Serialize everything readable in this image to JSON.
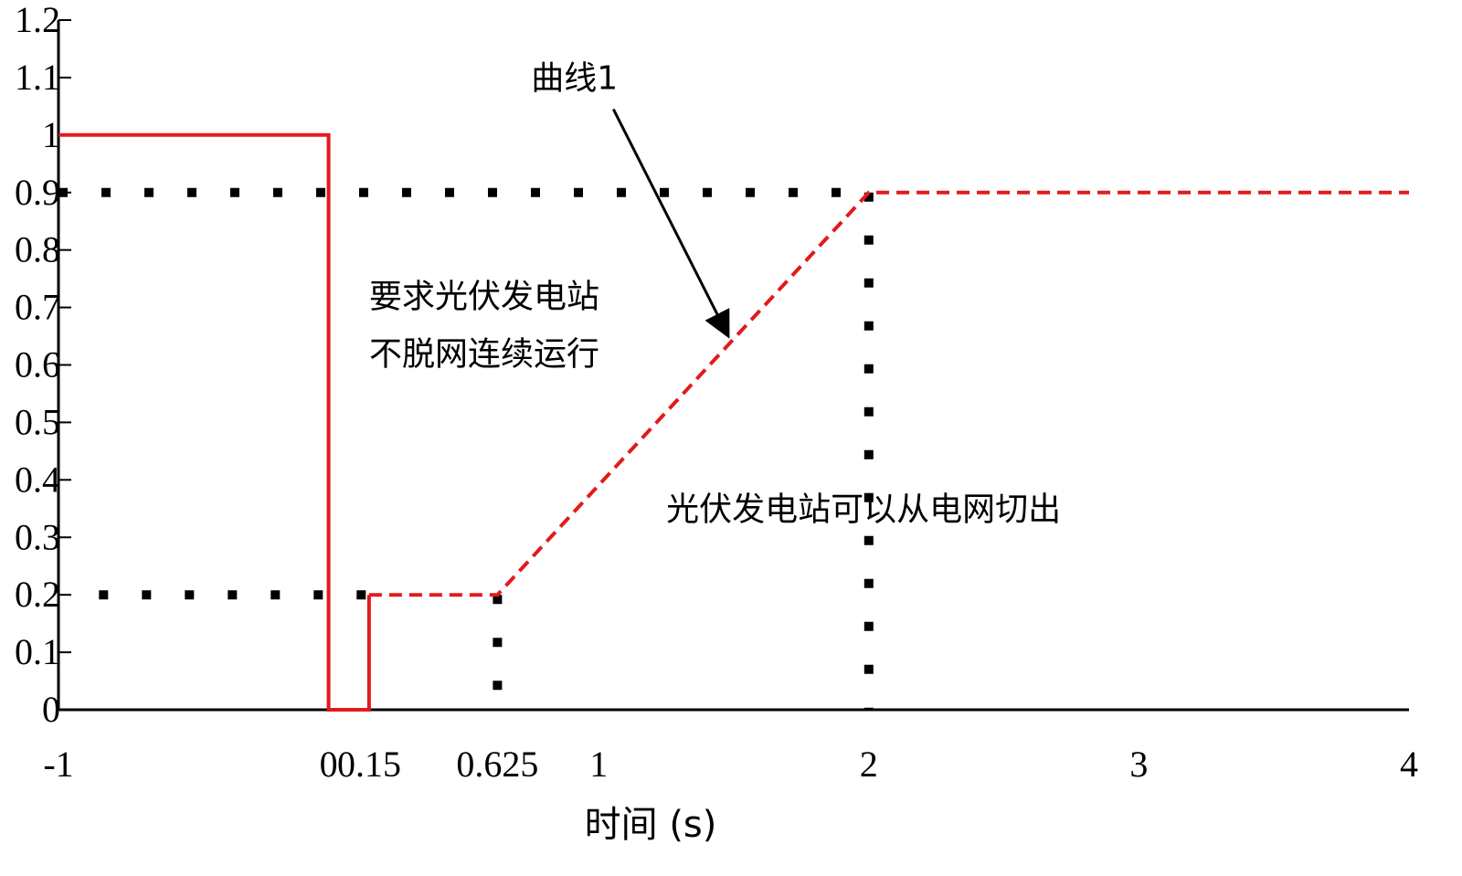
{
  "chart_data": {
    "type": "line",
    "title": "",
    "xlabel": "时间 (s)",
    "ylabel": "",
    "xlim": [
      -1,
      4
    ],
    "ylim": [
      0,
      1.2
    ],
    "x_ticks": [
      -1,
      0,
      0.15,
      0.625,
      1,
      2,
      3,
      4
    ],
    "x_tick_labels": [
      "-1",
      "0",
      "0.15",
      "0.625",
      "1",
      "2",
      "3",
      "4"
    ],
    "y_ticks": [
      0,
      0.1,
      0.2,
      0.3,
      0.4,
      0.5,
      0.6,
      0.7,
      0.8,
      0.9,
      1,
      1.1,
      1.2
    ],
    "y_tick_labels": [
      "0",
      "0.1",
      "0.2",
      "0.3",
      "0.4",
      "0.5",
      "0.6",
      "0.7",
      "0.8",
      "0.9",
      "1",
      "1.1",
      "1.2"
    ],
    "grid": false,
    "series": [
      {
        "style": "solid",
        "color": "#e31a1c",
        "points": [
          [
            -1,
            1
          ],
          [
            0,
            1
          ],
          [
            0,
            0
          ],
          [
            0.15,
            0
          ],
          [
            0.15,
            0.2
          ]
        ]
      },
      {
        "style": "dashed",
        "color": "#e31a1c",
        "points": [
          [
            0.15,
            0.2
          ],
          [
            0.625,
            0.2
          ],
          [
            2,
            0.9
          ],
          [
            4,
            0.9
          ]
        ]
      }
    ],
    "reference_lines": [
      {
        "style": "dotted",
        "color": "#000000",
        "points": [
          [
            -1,
            0.9
          ],
          [
            2,
            0.9
          ]
        ]
      },
      {
        "style": "dotted",
        "color": "#000000",
        "points": [
          [
            -0.85,
            0.2
          ],
          [
            0.15,
            0.2
          ]
        ]
      },
      {
        "style": "dotted",
        "color": "#000000",
        "points": [
          [
            0.625,
            0.2
          ],
          [
            0.625,
            0
          ]
        ]
      },
      {
        "style": "dotted",
        "color": "#000000",
        "points": [
          [
            2,
            0.9
          ],
          [
            2,
            0
          ]
        ]
      }
    ],
    "annotations": [
      {
        "text": "曲线1",
        "x": 0.75,
        "y": 1.08,
        "arrow_to": [
          1.48,
          0.65
        ]
      },
      {
        "text": "要求光伏发电站",
        "x": 0.15,
        "y": 0.7
      },
      {
        "text": "不脱网连续运行",
        "x": 0.15,
        "y": 0.6
      },
      {
        "text": "光伏发电站可以从电网切出",
        "x": 1.25,
        "y": 0.33
      }
    ]
  }
}
